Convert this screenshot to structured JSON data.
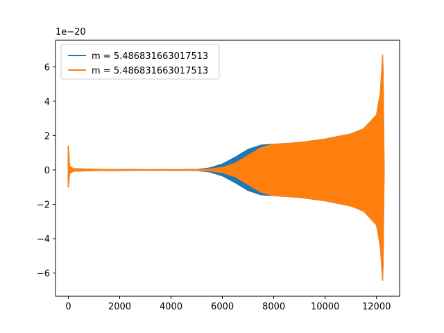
{
  "chart_data": {
    "type": "line",
    "title": "",
    "xlabel": "",
    "ylabel": "",
    "y_offset_label": "1e−20",
    "xlim": [
      -500,
      12900
    ],
    "ylim": [
      -7.35,
      7.55
    ],
    "x_ticks": [
      {
        "value": 0,
        "label": "0"
      },
      {
        "value": 2000,
        "label": "2000"
      },
      {
        "value": 4000,
        "label": "4000"
      },
      {
        "value": 6000,
        "label": "6000"
      },
      {
        "value": 8000,
        "label": "8000"
      },
      {
        "value": 10000,
        "label": "10000"
      },
      {
        "value": 12000,
        "label": "12000"
      }
    ],
    "y_ticks": [
      {
        "value": -6,
        "label": "−6"
      },
      {
        "value": -4,
        "label": "−4"
      },
      {
        "value": -2,
        "label": "−2"
      },
      {
        "value": 0,
        "label": "0"
      },
      {
        "value": 2,
        "label": "2"
      },
      {
        "value": 4,
        "label": "4"
      },
      {
        "value": 6,
        "label": "6"
      }
    ],
    "grid": false,
    "legend_position": "upper-left",
    "series": [
      {
        "name": "m = 5.486831663017513",
        "color": "#1f77b4",
        "style": "oscillating-envelope",
        "upper_envelope": [
          [
            0,
            1.4
          ],
          [
            50,
            0.2
          ],
          [
            200,
            0.08
          ],
          [
            1000,
            0.04
          ],
          [
            3000,
            0.02
          ],
          [
            5000,
            0.03
          ],
          [
            5500,
            0.12
          ],
          [
            6000,
            0.35
          ],
          [
            6500,
            0.75
          ],
          [
            7000,
            1.2
          ],
          [
            7500,
            1.45
          ],
          [
            8000,
            1.5
          ],
          [
            9000,
            1.6
          ],
          [
            10000,
            1.8
          ],
          [
            11000,
            2.1
          ],
          [
            11500,
            2.4
          ],
          [
            12000,
            3.2
          ],
          [
            12150,
            4.5
          ],
          [
            12250,
            7.0
          ],
          [
            12300,
            0.0
          ]
        ],
        "lower_envelope": [
          [
            0,
            -1.0
          ],
          [
            50,
            -0.2
          ],
          [
            200,
            -0.08
          ],
          [
            1000,
            -0.04
          ],
          [
            3000,
            -0.02
          ],
          [
            5000,
            -0.03
          ],
          [
            5500,
            -0.12
          ],
          [
            6000,
            -0.35
          ],
          [
            6500,
            -0.75
          ],
          [
            7000,
            -1.2
          ],
          [
            7500,
            -1.45
          ],
          [
            8000,
            -1.5
          ],
          [
            9000,
            -1.6
          ],
          [
            10000,
            -1.8
          ],
          [
            11000,
            -2.1
          ],
          [
            11500,
            -2.4
          ],
          [
            12000,
            -3.2
          ],
          [
            12150,
            -4.5
          ],
          [
            12250,
            -6.7
          ],
          [
            12300,
            0.0
          ]
        ]
      },
      {
        "name": "m = 5.486831663017513",
        "color": "#ff7f0e",
        "style": "oscillating-envelope",
        "upper_envelope": [
          [
            0,
            1.4
          ],
          [
            50,
            0.2
          ],
          [
            200,
            0.08
          ],
          [
            1000,
            0.04
          ],
          [
            3000,
            0.02
          ],
          [
            5000,
            0.02
          ],
          [
            5500,
            0.06
          ],
          [
            6000,
            0.15
          ],
          [
            6500,
            0.4
          ],
          [
            7000,
            0.85
          ],
          [
            7500,
            1.3
          ],
          [
            8000,
            1.5
          ],
          [
            9000,
            1.6
          ],
          [
            10000,
            1.8
          ],
          [
            11000,
            2.1
          ],
          [
            11500,
            2.4
          ],
          [
            12000,
            3.2
          ],
          [
            12150,
            4.5
          ],
          [
            12250,
            7.0
          ],
          [
            12300,
            0.0
          ]
        ],
        "lower_envelope": [
          [
            0,
            -1.0
          ],
          [
            50,
            -0.2
          ],
          [
            200,
            -0.08
          ],
          [
            1000,
            -0.04
          ],
          [
            3000,
            -0.02
          ],
          [
            5000,
            -0.02
          ],
          [
            5500,
            -0.06
          ],
          [
            6000,
            -0.15
          ],
          [
            6500,
            -0.4
          ],
          [
            7000,
            -0.85
          ],
          [
            7500,
            -1.3
          ],
          [
            8000,
            -1.5
          ],
          [
            9000,
            -1.6
          ],
          [
            10000,
            -1.8
          ],
          [
            11000,
            -2.1
          ],
          [
            11500,
            -2.4
          ],
          [
            12000,
            -3.2
          ],
          [
            12150,
            -4.5
          ],
          [
            12250,
            -6.7
          ],
          [
            12300,
            0.0
          ]
        ]
      }
    ]
  }
}
